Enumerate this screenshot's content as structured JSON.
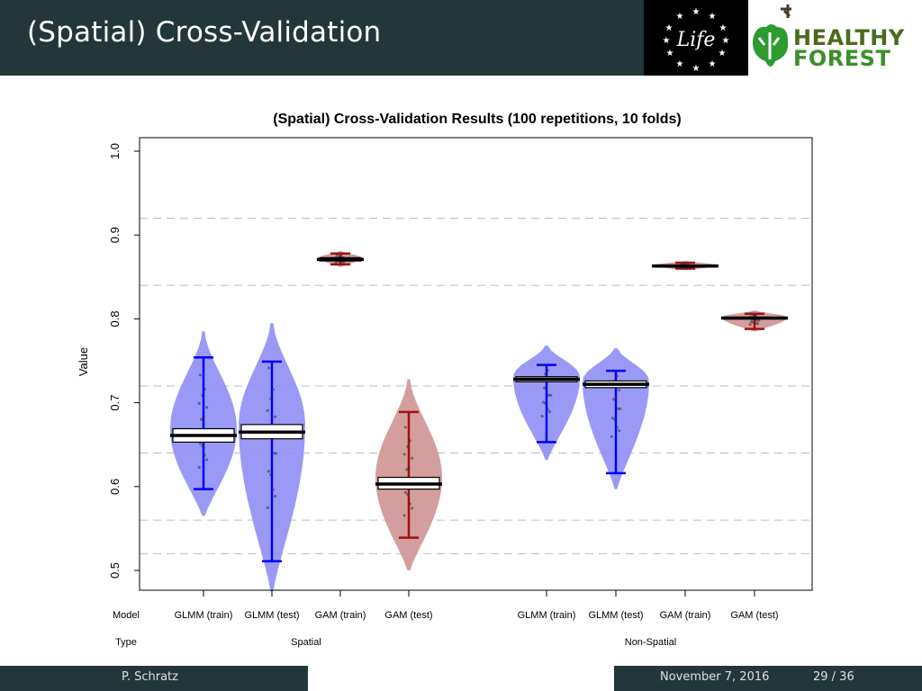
{
  "slide": {
    "title": "(Spatial) Cross-Validation",
    "author": "P. Schratz",
    "date": "November 7, 2016",
    "page": "29 / 36",
    "logo_life_text": "Life",
    "logo_hf_line1": "HEALTHY",
    "logo_hf_line2": "FOREST"
  },
  "colors": {
    "header_bg": "#23373b",
    "spatial_blue": "#0000ff",
    "spatial_red": "#a01010",
    "violin_blue": "#8f8ff5",
    "violin_red": "#cf9393"
  },
  "chart_data": {
    "type": "violin",
    "title": "(Spatial) Cross-Validation Results (100 repetitions, 10 folds)",
    "ylabel": "Value",
    "ylim": [
      0.5,
      1.0
    ],
    "yticks": [
      0.5,
      0.6,
      0.7,
      0.8,
      0.9,
      1.0
    ],
    "hlines": [
      0.52,
      0.56,
      0.64,
      0.72,
      0.84,
      0.92
    ],
    "row_labels": [
      "Model",
      "Type"
    ],
    "groups": [
      {
        "type": "Spatial",
        "models": [
          "GLMM (train)",
          "GLMM (test)",
          "GAM (train)",
          "GAM (test)"
        ]
      },
      {
        "type": "Non-Spatial",
        "models": [
          "GLMM (train)",
          "GLMM (test)",
          "GAM (train)",
          "GAM (test)"
        ]
      }
    ],
    "categories": [
      "GLMM (train)",
      "GLMM (test)",
      "GAM (train)",
      "GAM (test)",
      "GLMM (train)",
      "GLMM (test)",
      "GAM (train)",
      "GAM (test)"
    ],
    "series": [
      {
        "model": "GLMM (train)",
        "type": "Spatial",
        "color": "blue",
        "min": 0.597,
        "max": 0.754,
        "violin_min": 0.565,
        "violin_max": 0.785,
        "mean": 0.661,
        "box": [
          0.653,
          0.669
        ]
      },
      {
        "model": "GLMM (test)",
        "type": "Spatial",
        "color": "blue",
        "min": 0.511,
        "max": 0.749,
        "violin_min": 0.475,
        "violin_max": 0.795,
        "mean": 0.665,
        "box": [
          0.657,
          0.674
        ]
      },
      {
        "model": "GAM (train)",
        "type": "Spatial",
        "color": "red",
        "min": 0.865,
        "max": 0.878,
        "violin_min": 0.862,
        "violin_max": 0.881,
        "mean": 0.871,
        "box": [
          0.869,
          0.873
        ]
      },
      {
        "model": "GAM (test)",
        "type": "Spatial",
        "color": "red",
        "min": 0.539,
        "max": 0.689,
        "violin_min": 0.5,
        "violin_max": 0.728,
        "mean": 0.603,
        "box": [
          0.597,
          0.611
        ]
      },
      {
        "model": "GLMM (train)",
        "type": "Non-Spatial",
        "color": "blue",
        "min": 0.653,
        "max": 0.745,
        "violin_min": 0.632,
        "violin_max": 0.768,
        "mean": 0.728,
        "box": [
          0.725,
          0.731
        ]
      },
      {
        "model": "GLMM (test)",
        "type": "Non-Spatial",
        "color": "blue",
        "min": 0.616,
        "max": 0.738,
        "violin_min": 0.597,
        "violin_max": 0.765,
        "mean": 0.722,
        "box": [
          0.718,
          0.726
        ]
      },
      {
        "model": "GAM (train)",
        "type": "Non-Spatial",
        "color": "red",
        "min": 0.86,
        "max": 0.867,
        "violin_min": 0.858,
        "violin_max": 0.869,
        "mean": 0.863,
        "box": [
          0.862,
          0.864
        ]
      },
      {
        "model": "GAM (test)",
        "type": "Non-Spatial",
        "color": "red",
        "min": 0.788,
        "max": 0.806,
        "violin_min": 0.785,
        "violin_max": 0.81,
        "mean": 0.801,
        "box": [
          0.8,
          0.802
        ]
      }
    ]
  }
}
